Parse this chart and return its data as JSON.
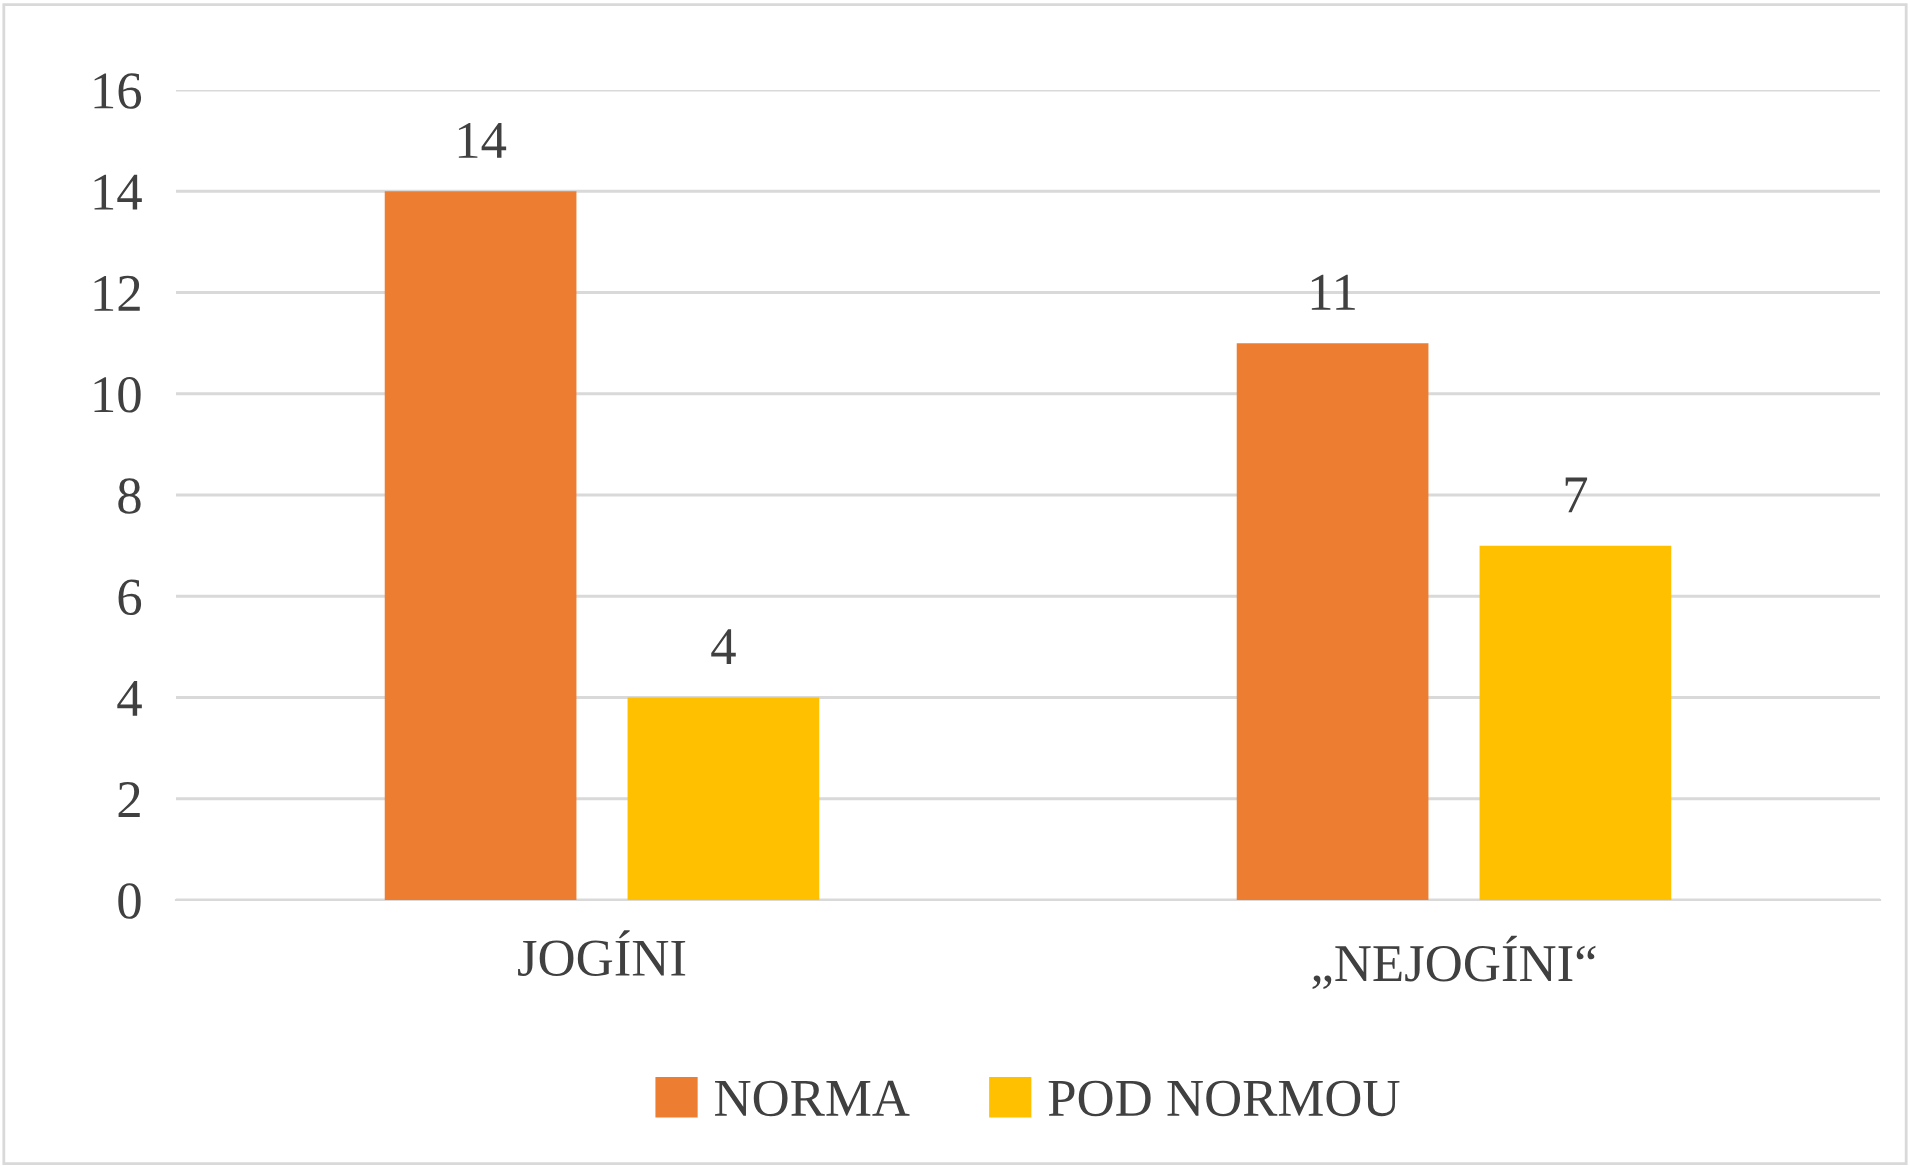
{
  "chart_data": {
    "type": "bar",
    "categories": [
      "JOGÍNI",
      "„NEJOGÍNI“"
    ],
    "series": [
      {
        "name": "NORMA",
        "color": "#ed7d31",
        "values": [
          14,
          11
        ]
      },
      {
        "name": "POD NORMOU",
        "color": "#ffc000",
        "values": [
          4,
          7
        ]
      }
    ],
    "ylim": [
      0,
      16
    ],
    "yticks": [
      0,
      2,
      4,
      6,
      8,
      10,
      12,
      14,
      16
    ],
    "grid": "y",
    "legend": "bottom",
    "data_labels": true
  }
}
